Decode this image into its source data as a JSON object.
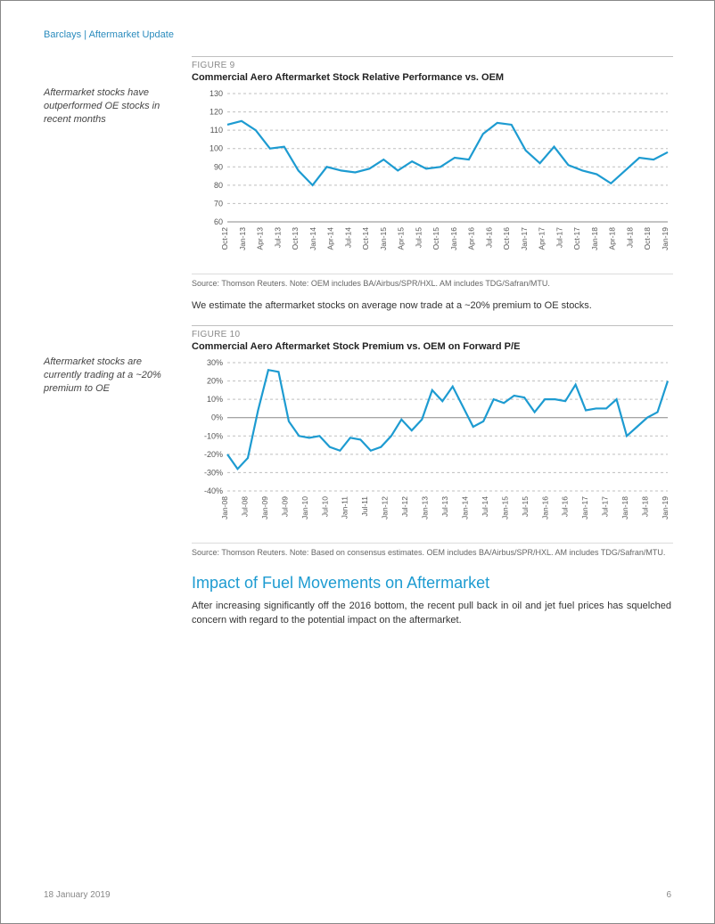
{
  "header": {
    "brand": "Barclays",
    "sep": " | ",
    "title": "Aftermarket Update"
  },
  "sidebar": {
    "note1": "Aftermarket  stocks have outperformed OE stocks in recent months",
    "note2": "Aftermarket stocks are currently trading at a ~20% premium to OE"
  },
  "figure9": {
    "label": "FIGURE 9",
    "title": "Commercial Aero Aftermarket Stock Relative Performance vs. OEM",
    "type": "line",
    "ylim": [
      60,
      130
    ],
    "ytick_step": 10,
    "x_labels": [
      "Oct-12",
      "Jan-13",
      "Apr-13",
      "Jul-13",
      "Oct-13",
      "Jan-14",
      "Apr-14",
      "Jul-14",
      "Oct-14",
      "Jan-15",
      "Apr-15",
      "Jul-15",
      "Oct-15",
      "Jan-16",
      "Apr-16",
      "Jul-16",
      "Oct-16",
      "Jan-17",
      "Apr-17",
      "Jul-17",
      "Oct-17",
      "Jan-18",
      "Apr-18",
      "Jul-18",
      "Oct-18",
      "Jan-19"
    ],
    "values": [
      113,
      115,
      110,
      100,
      101,
      88,
      80,
      90,
      88,
      87,
      89,
      94,
      88,
      93,
      89,
      90,
      95,
      94,
      108,
      114,
      113,
      99,
      92,
      101,
      91,
      88,
      86,
      81,
      88,
      95,
      94,
      98
    ],
    "line_color": "#1d9bd1",
    "line_width": 2.2,
    "grid_color": "#bfbfbf",
    "background_color": "#ffffff",
    "axis_fontsize": 9,
    "source": "Source: Thomson Reuters. Note: OEM includes BA/Airbus/SPR/HXL. AM includes TDG/Safran/MTU."
  },
  "mid_text": "We estimate the aftermarket stocks on average now trade at a ~20% premium to OE stocks.",
  "figure10": {
    "label": "FIGURE 10",
    "title": "Commercial Aero Aftermarket Stock Premium vs. OEM on Forward P/E",
    "type": "line",
    "ylim": [
      -40,
      30
    ],
    "ytick_step": 10,
    "y_suffix": "%",
    "x_labels": [
      "Jan-08",
      "Jul-08",
      "Jan-09",
      "Jul-09",
      "Jan-10",
      "Jul-10",
      "Jan-11",
      "Jul-11",
      "Jan-12",
      "Jul-12",
      "Jan-13",
      "Jul-13",
      "Jan-14",
      "Jul-14",
      "Jan-15",
      "Jul-15",
      "Jan-16",
      "Jul-16",
      "Jan-17",
      "Jul-17",
      "Jan-18",
      "Jul-18",
      "Jan-19"
    ],
    "values": [
      -20,
      -28,
      -22,
      4,
      26,
      25,
      -2,
      -10,
      -11,
      -10,
      -16,
      -18,
      -11,
      -12,
      -18,
      -16,
      -10,
      -1,
      -7,
      -1,
      15,
      9,
      17,
      6,
      -5,
      -2,
      10,
      8,
      12,
      11,
      3,
      10,
      10,
      9,
      18,
      4,
      5,
      5,
      10,
      -10,
      -5,
      0,
      3,
      20
    ],
    "line_color": "#1d9bd1",
    "line_width": 2.2,
    "grid_color": "#bfbfbf",
    "background_color": "#ffffff",
    "axis_fontsize": 9,
    "source": "Source: Thomson Reuters. Note: Based on consensus estimates. OEM includes BA/Airbus/SPR/HXL. AM includes TDG/Safran/MTU."
  },
  "section": {
    "heading": "Impact of Fuel Movements on Aftermarket",
    "para": "After increasing significantly off the 2016 bottom, the recent pull back in oil and jet fuel prices has squelched concern with regard to the potential impact on the aftermarket."
  },
  "footer": {
    "date": "18 January 2019",
    "page": "6"
  }
}
